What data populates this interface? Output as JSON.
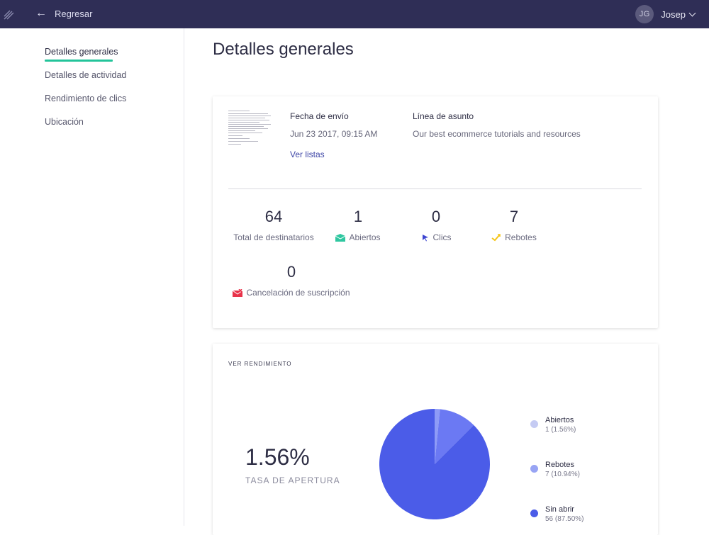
{
  "topbar": {
    "back_label": "Regresar",
    "user_initials": "JG",
    "user_name": "Josep"
  },
  "sidebar": {
    "items": [
      {
        "label": "Detalles generales",
        "active": true
      },
      {
        "label": "Detalles de actividad",
        "active": false
      },
      {
        "label": "Rendimiento de clics",
        "active": false
      },
      {
        "label": "Ubicación",
        "active": false
      }
    ]
  },
  "page": {
    "title": "Detalles generales"
  },
  "summary": {
    "send_date_label": "Fecha de envío",
    "send_date_value": "Jun 23 2017, 09:15 AM",
    "view_lists_label": "Ver listas",
    "subject_label": "Línea de asunto",
    "subject_value": "Our best ecommerce tutorials and resources",
    "stats": [
      {
        "value": "64",
        "label": "Total de destinatarios",
        "icon": "none"
      },
      {
        "value": "1",
        "label": "Abiertos",
        "icon": "open-envelope-icon",
        "color": "#2fc7a0"
      },
      {
        "value": "0",
        "label": "Clics",
        "icon": "cursor-click-icon",
        "color": "#3d45d0"
      },
      {
        "value": "7",
        "label": "Rebotes",
        "icon": "bounce-arrow-icon",
        "color": "#f5c518"
      },
      {
        "value": "0",
        "label": "Cancelación de suscripción",
        "icon": "unsubscribe-envelope-icon",
        "color": "#e8334a"
      }
    ]
  },
  "performance": {
    "section_title": "VER RENDIMIENTO",
    "open_rate": "1.56%",
    "open_rate_label": "TASA DE APERTURA",
    "legend": [
      {
        "name": "Abiertos",
        "detail": "1 (1.56%)",
        "color": "#c5cbf3"
      },
      {
        "name": "Rebotes",
        "detail": "7 (10.94%)",
        "color": "#98a4f4"
      },
      {
        "name": "Sin abrir",
        "detail": "56 (87.50%)",
        "color": "#4b5ce8"
      }
    ]
  },
  "chart_data": {
    "type": "pie",
    "categories": [
      "Abiertos",
      "Rebotes",
      "Sin abrir"
    ],
    "values": [
      1,
      7,
      56
    ],
    "colors": [
      "#8e9bf7",
      "#6b79f3",
      "#4b5ce8"
    ]
  }
}
